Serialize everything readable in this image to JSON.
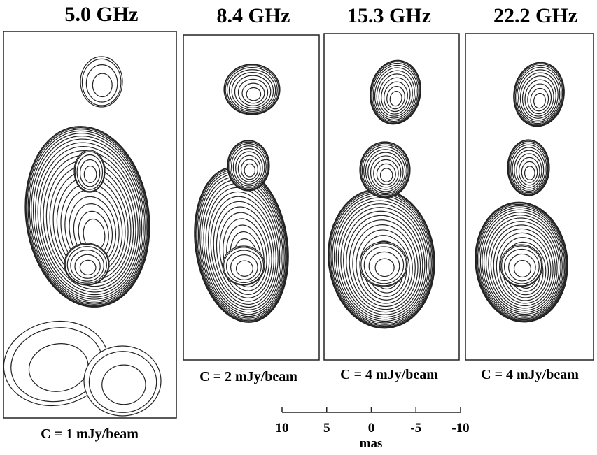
{
  "panels": [
    {
      "title": "5.0 GHz",
      "caption": "C = 1 mJy/beam"
    },
    {
      "title": "8.4 GHz",
      "caption": "C = 2 mJy/beam"
    },
    {
      "title": "15.3 GHz",
      "caption": "C = 4 mJy/beam"
    },
    {
      "title": "22.2 GHz",
      "caption": "C = 4 mJy/beam"
    }
  ],
  "scale_bar": {
    "ticks": [
      10,
      5,
      0,
      -5,
      -10
    ],
    "label": "mas"
  }
}
